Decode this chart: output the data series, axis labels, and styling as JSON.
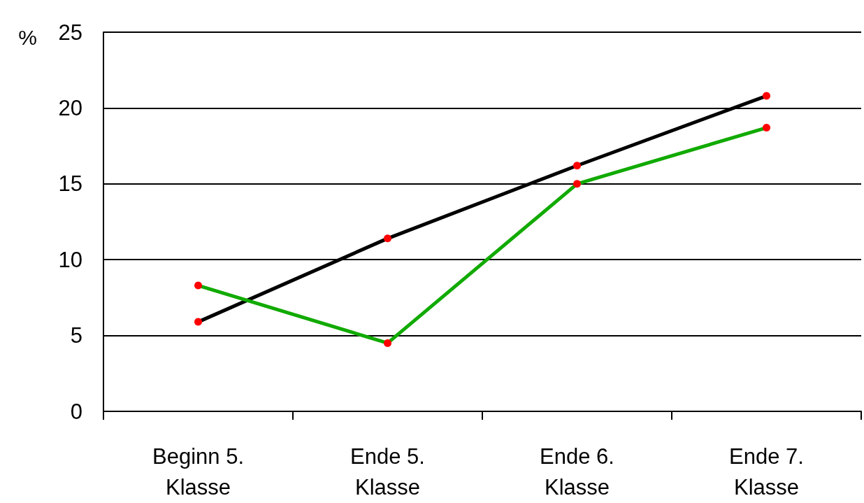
{
  "chart_data": {
    "type": "line",
    "ylabel": "%",
    "categories": [
      "Beginn 5.\nKlasse",
      "Ende 5.\nKlasse",
      "Ende 6.\nKlasse",
      "Ende 7.\nKlasse"
    ],
    "series": [
      {
        "color": "#000000",
        "colors": [
          "#ff0000",
          "#ff0000",
          "#ff0000",
          "#ff0000"
        ],
        "values": [
          5.9,
          11.4,
          16.2,
          20.8
        ]
      },
      {
        "color": "#11aa00",
        "colors": [
          "#ff0000",
          "#ff0000",
          "#ff0000",
          "#ff0000"
        ],
        "values": [
          8.3,
          4.5,
          15.0,
          18.7
        ]
      }
    ],
    "ylim": [
      0,
      25
    ],
    "yticks": [
      0,
      5,
      10,
      15,
      20,
      25
    ],
    "grid": "y",
    "marker": "circle",
    "line_style": "solid"
  }
}
